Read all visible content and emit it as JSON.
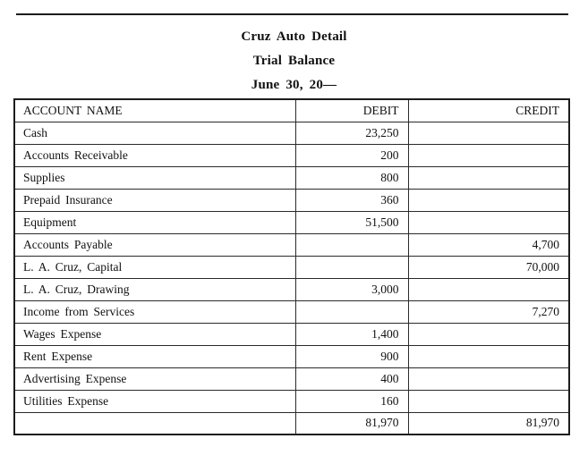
{
  "document": {
    "company": "Cruz Auto Detail",
    "report_title": "Trial Balance",
    "report_date": "June 30, 20—"
  },
  "table": {
    "headers": {
      "account": "ACCOUNT NAME",
      "debit": "DEBIT",
      "credit": "CREDIT"
    },
    "rows": [
      {
        "account": "Cash",
        "debit": "23,250",
        "credit": ""
      },
      {
        "account": "Accounts Receivable",
        "debit": "200",
        "credit": ""
      },
      {
        "account": "Supplies",
        "debit": "800",
        "credit": ""
      },
      {
        "account": "Prepaid Insurance",
        "debit": "360",
        "credit": ""
      },
      {
        "account": "Equipment",
        "debit": "51,500",
        "credit": ""
      },
      {
        "account": "Accounts Payable",
        "debit": "",
        "credit": "4,700"
      },
      {
        "account": "L. A. Cruz, Capital",
        "debit": "",
        "credit": "70,000"
      },
      {
        "account": "L. A. Cruz, Drawing",
        "debit": "3,000",
        "credit": ""
      },
      {
        "account": "Income from Services",
        "debit": "",
        "credit": "7,270"
      },
      {
        "account": "Wages Expense",
        "debit": "1,400",
        "credit": ""
      },
      {
        "account": "Rent Expense",
        "debit": "900",
        "credit": ""
      },
      {
        "account": "Advertising Expense",
        "debit": "400",
        "credit": ""
      },
      {
        "account": "Utilities Expense",
        "debit": "160",
        "credit": ""
      }
    ],
    "totals": {
      "account": "",
      "debit": "81,970",
      "credit": "81,970"
    }
  },
  "colors": {
    "background": "#ffffff",
    "text": "#111111",
    "border": "#1c1c1c"
  }
}
